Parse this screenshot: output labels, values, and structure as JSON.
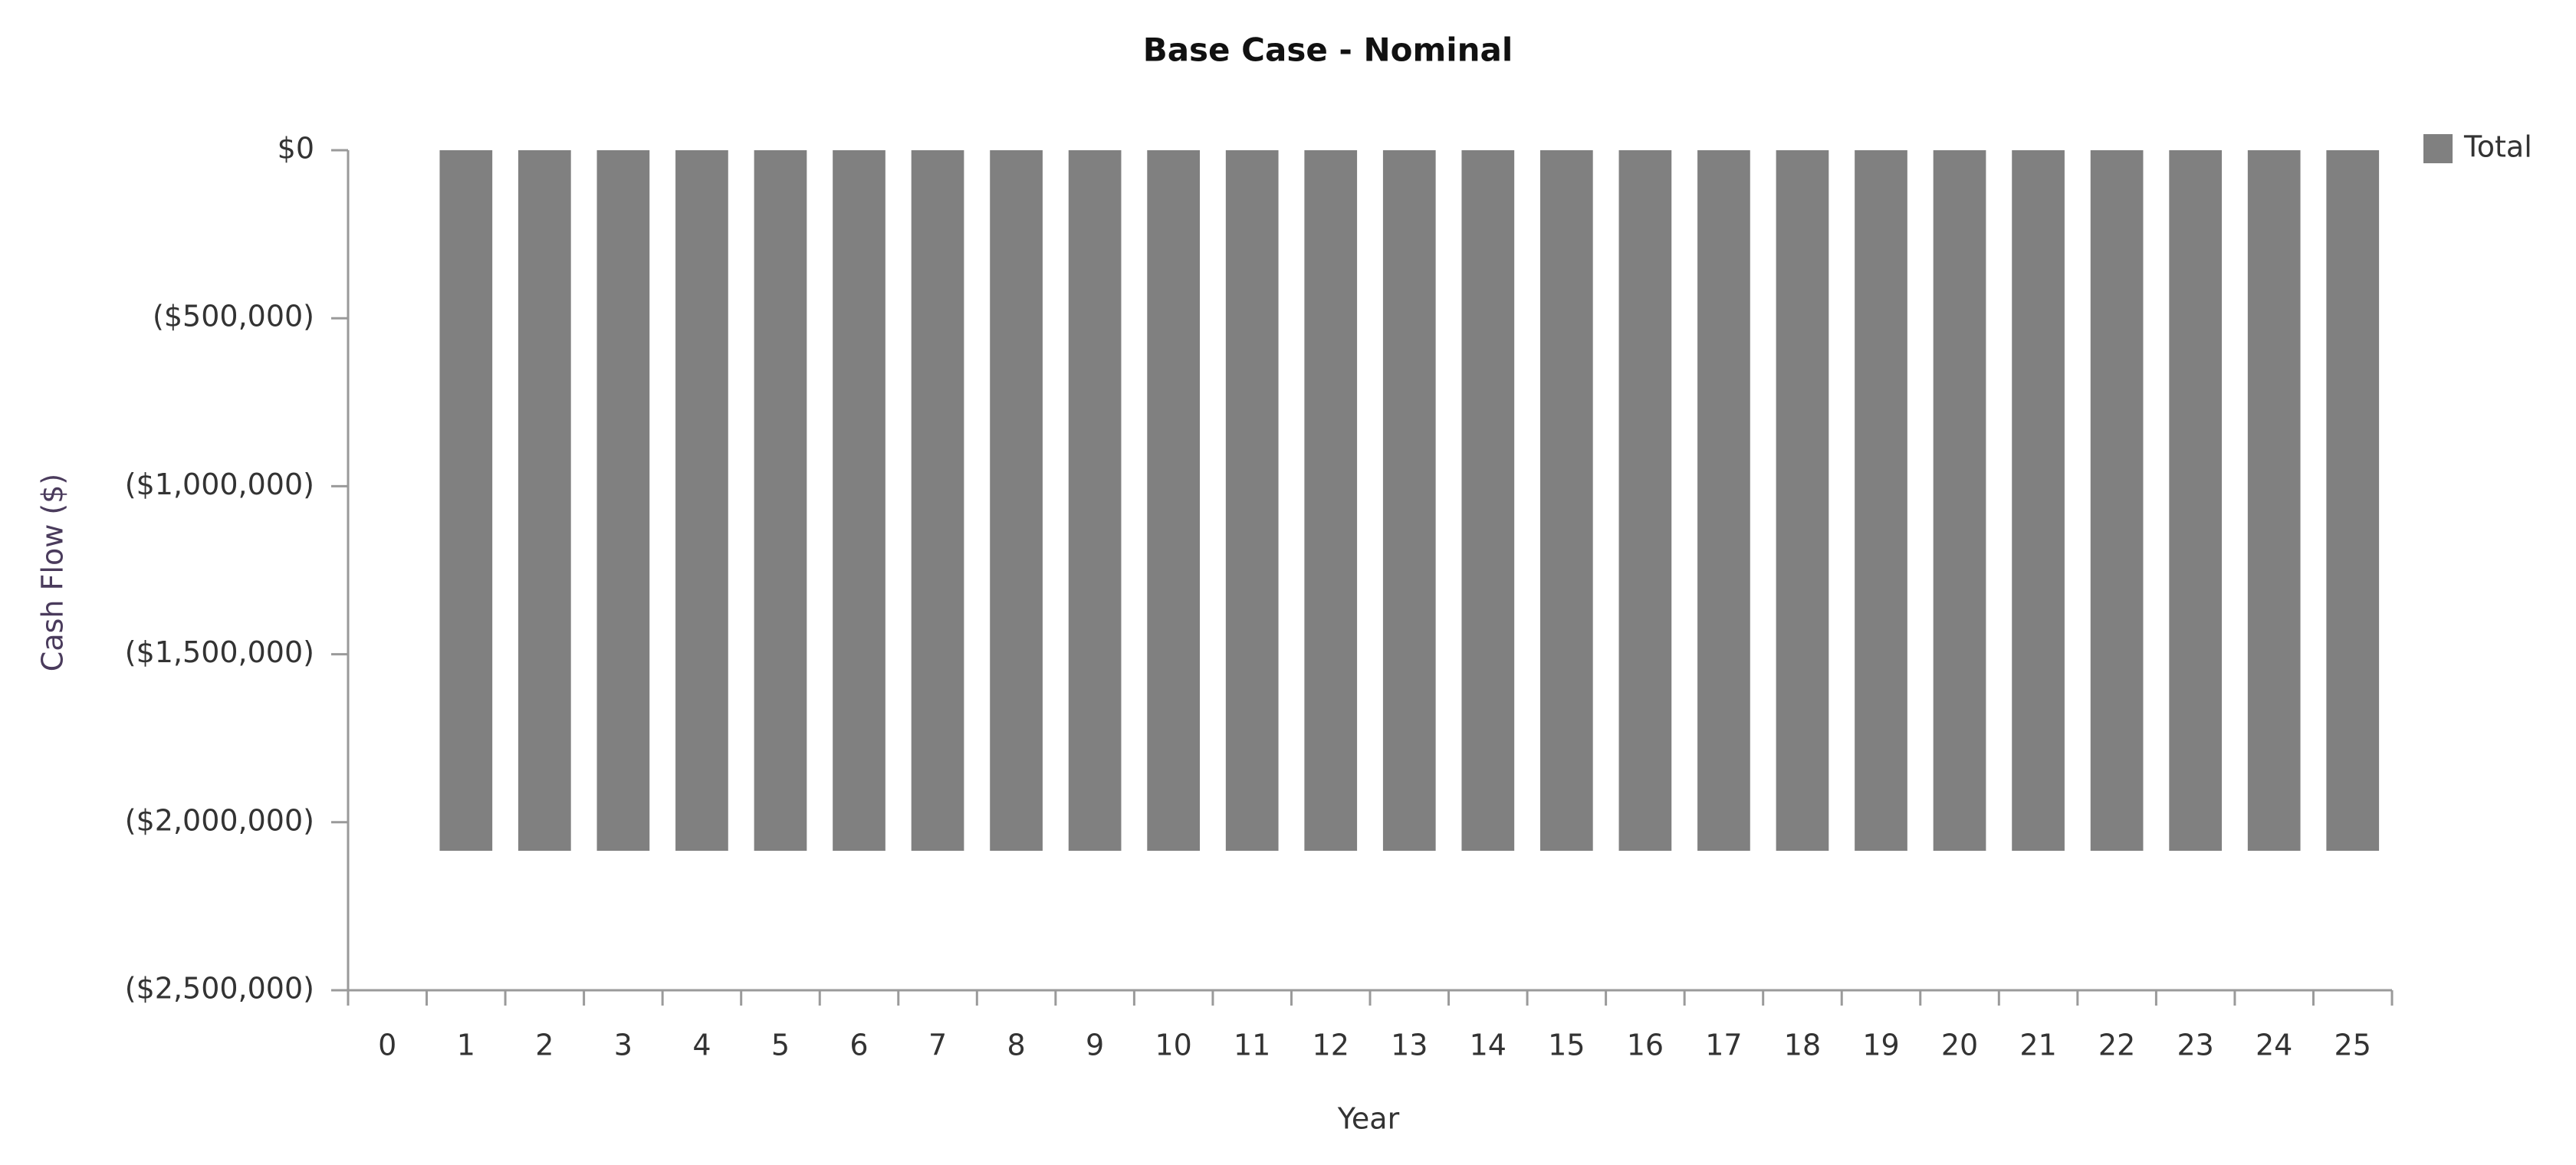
{
  "chart_data": {
    "type": "bar",
    "title": "Base Case - Nominal",
    "x_label": "Year",
    "y_label": "Cash Flow ($)",
    "categories": [
      "0",
      "1",
      "2",
      "3",
      "4",
      "5",
      "6",
      "7",
      "8",
      "9",
      "10",
      "11",
      "12",
      "13",
      "14",
      "15",
      "16",
      "17",
      "18",
      "19",
      "20",
      "21",
      "22",
      "23",
      "24",
      "25"
    ],
    "series": [
      {
        "name": "Total",
        "color": "#808080",
        "values": [
          0,
          -2085000,
          -2085000,
          -2085000,
          -2085000,
          -2085000,
          -2085000,
          -2085000,
          -2085000,
          -2085000,
          -2085000,
          -2085000,
          -2085000,
          -2085000,
          -2085000,
          -2085000,
          -2085000,
          -2085000,
          -2085000,
          -2085000,
          -2085000,
          -2085000,
          -2085000,
          -2085000,
          -2085000,
          -2085000
        ]
      }
    ],
    "ylim": [
      -2500000,
      0
    ],
    "yticks": [
      {
        "value": 0,
        "label": "$0"
      },
      {
        "value": -500000,
        "label": "($500,000)"
      },
      {
        "value": -1000000,
        "label": "($1,000,000)"
      },
      {
        "value": -1500000,
        "label": "($1,500,000)"
      },
      {
        "value": -2000000,
        "label": "($2,000,000)"
      },
      {
        "value": -2500000,
        "label": "($2,500,000)"
      }
    ],
    "grid": false,
    "legend": "top-right"
  }
}
